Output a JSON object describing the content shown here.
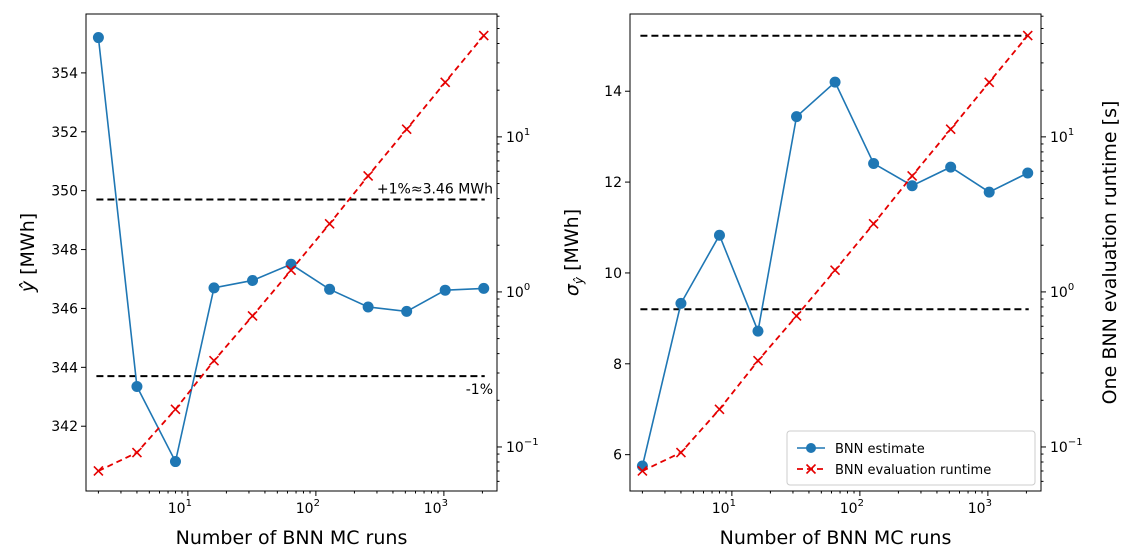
{
  "chart_data": [
    {
      "type": "line",
      "xlabel": "Number of BNN MC runs",
      "ylabel": "ŷ [MWh]",
      "y2label": "",
      "xscale": "log",
      "y2scale": "log",
      "xlim": [
        1.6,
        2600
      ],
      "ylim": [
        339.8,
        356
      ],
      "y2lim": [
        0.052,
        62
      ],
      "x_ticks": [
        {
          "value": 10,
          "base": "10",
          "exp": "1"
        },
        {
          "value": 100,
          "base": "10",
          "exp": "2"
        },
        {
          "value": 1000,
          "base": "10",
          "exp": "3"
        }
      ],
      "y_ticks": [
        342,
        344,
        346,
        348,
        350,
        352,
        354
      ],
      "y2_ticks": [
        {
          "value": 0.1,
          "base": "10",
          "exp": "−1"
        },
        {
          "value": 1,
          "base": "10",
          "exp": "0"
        },
        {
          "value": 10,
          "base": "10",
          "exp": "1"
        }
      ],
      "x": [
        2,
        4,
        8,
        16,
        32,
        64,
        128,
        256,
        512,
        1024,
        2048
      ],
      "series": [
        {
          "name": "BNN estimate",
          "axis": "left",
          "color": "#1f77b4",
          "marker": "circle",
          "values": [
            355.2,
            343.35,
            340.8,
            346.7,
            346.95,
            347.5,
            346.65,
            346.05,
            345.9,
            346.62,
            346.68
          ]
        },
        {
          "name": "BNN evaluation runtime",
          "axis": "right",
          "color": "#e50000",
          "marker": "x",
          "values": [
            0.07,
            0.092,
            0.175,
            0.36,
            0.7,
            1.38,
            2.75,
            5.6,
            11.2,
            22.5,
            45
          ]
        }
      ],
      "hlines": [
        {
          "value": 349.7,
          "label": "+1%≈3.46 MWh"
        },
        {
          "value": 343.7,
          "label": "-1%"
        }
      ],
      "legend": "none"
    },
    {
      "type": "line",
      "xlabel": "Number of BNN MC runs",
      "ylabel": "σŷ [MWh]",
      "y2label": "One BNN evaluation runtime [s]",
      "xscale": "log",
      "y2scale": "log",
      "xlim": [
        1.6,
        2600
      ],
      "ylim": [
        5.2,
        15.7
      ],
      "y2lim": [
        0.052,
        62
      ],
      "x_ticks": [
        {
          "value": 10,
          "base": "10",
          "exp": "1"
        },
        {
          "value": 100,
          "base": "10",
          "exp": "2"
        },
        {
          "value": 1000,
          "base": "10",
          "exp": "3"
        }
      ],
      "y_ticks": [
        6,
        8,
        10,
        12,
        14
      ],
      "y2_ticks": [
        {
          "value": 0.1,
          "base": "10",
          "exp": "−1"
        },
        {
          "value": 1,
          "base": "10",
          "exp": "0"
        },
        {
          "value": 10,
          "base": "10",
          "exp": "1"
        }
      ],
      "x": [
        2,
        4,
        8,
        16,
        32,
        64,
        128,
        256,
        512,
        1024,
        2048
      ],
      "series": [
        {
          "name": "BNN estimate",
          "axis": "left",
          "color": "#1f77b4",
          "marker": "circle",
          "values": [
            5.75,
            9.33,
            10.83,
            8.72,
            13.44,
            14.2,
            12.41,
            11.92,
            12.33,
            11.78,
            12.2
          ]
        },
        {
          "name": "BNN evaluation runtime",
          "axis": "right",
          "color": "#e50000",
          "marker": "x",
          "values": [
            0.07,
            0.092,
            0.175,
            0.36,
            0.7,
            1.38,
            2.75,
            5.6,
            11.2,
            22.5,
            45
          ]
        }
      ],
      "hlines": [
        {
          "value": 15.22,
          "label": ""
        },
        {
          "value": 9.2,
          "label": ""
        }
      ],
      "legend": "lower-right"
    }
  ]
}
